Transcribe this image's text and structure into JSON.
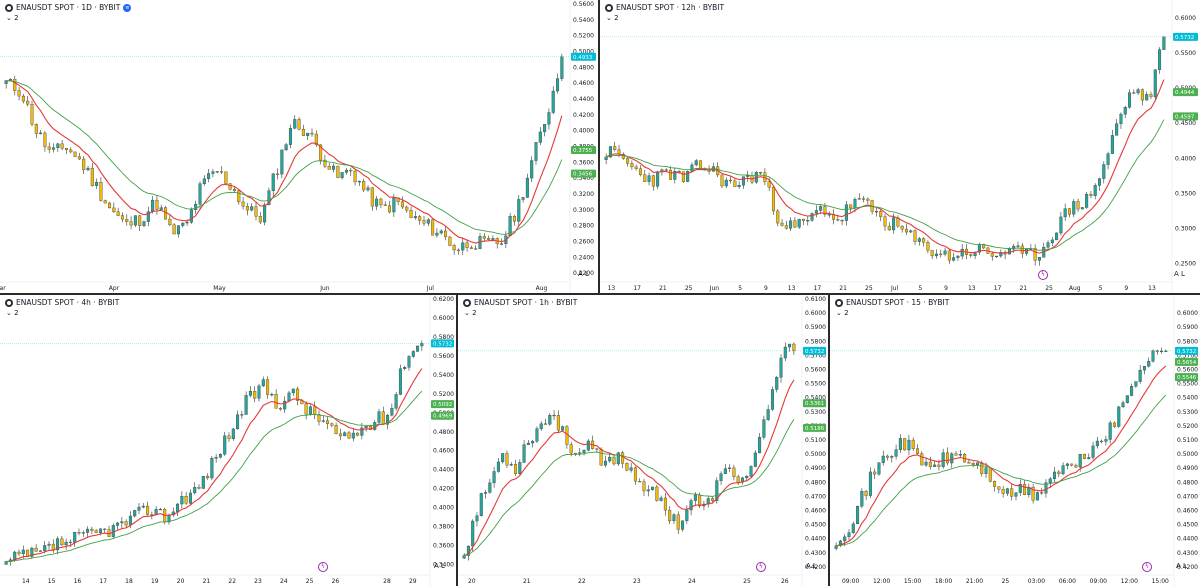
{
  "colors": {
    "up": "#26a69a",
    "down": "#f0b90b",
    "ema_fast": "#e53935",
    "ema_slow": "#43a047",
    "tag_price": "#00bcd4",
    "tag_green": "#4caf50"
  },
  "panels": [
    {
      "id": "1d",
      "title": "ENAUSDT SPOT · 1D · BYBIT",
      "indicator": "2",
      "show_badge": true,
      "show_flash": false,
      "watermark": "",
      "corner": "A  L"
    },
    {
      "id": "12h",
      "title": "ENAUSDT SPOT · 12h · BYBIT",
      "indicator": "2",
      "show_badge": false,
      "show_flash": true,
      "corner": "A  L"
    },
    {
      "id": "4h",
      "title": "ENAUSDT SPOT · 4h · BYBIT",
      "indicator": "2",
      "show_badge": false,
      "show_flash": true,
      "corner": "A  L"
    },
    {
      "id": "1h",
      "title": "ENAUSDT SPOT · 1h · BYBIT",
      "indicator": "2",
      "show_badge": false,
      "show_flash": true,
      "corner": "A  L"
    },
    {
      "id": "15",
      "title": "ENAUSDT SPOT · 15 · BYBIT",
      "indicator": "2",
      "show_badge": false,
      "show_flash": true,
      "corner": "A  L"
    }
  ],
  "chart_data": [
    {
      "type": "candlestick",
      "title": "ENAUSDT SPOT · 1D · BYBIT",
      "ylim": [
        0.21,
        0.56
      ],
      "yticks": [
        "0.5600",
        "0.5400",
        "0.5200",
        "0.5000",
        "0.4800",
        "0.4600",
        "0.4400",
        "0.4200",
        "0.4000",
        "0.3800",
        "0.3600",
        "0.3400",
        "0.3200",
        "0.3000",
        "0.2800",
        "0.2600",
        "0.2400",
        "0.2200"
      ],
      "xticks": [
        "Mar",
        "Apr",
        "May",
        "Jun",
        "Jul",
        "Aug"
      ],
      "xtick_pos": [
        0.0,
        0.2,
        0.385,
        0.57,
        0.755,
        0.95
      ],
      "tags": [
        {
          "text": "0.4933",
          "value": 0.4933,
          "color": "#00bcd4"
        },
        {
          "text": "0.3755",
          "value": 0.3755,
          "color": "#4caf50"
        },
        {
          "text": "0.3456",
          "value": 0.3456,
          "color": "#4caf50"
        }
      ],
      "current": 0.4933,
      "seed": 11,
      "path": [
        0.46,
        0.45,
        0.4,
        0.37,
        0.38,
        0.36,
        0.33,
        0.3,
        0.28,
        0.29,
        0.31,
        0.27,
        0.28,
        0.33,
        0.35,
        0.33,
        0.3,
        0.29,
        0.35,
        0.41,
        0.4,
        0.37,
        0.34,
        0.35,
        0.32,
        0.3,
        0.31,
        0.29,
        0.28,
        0.27,
        0.25,
        0.26,
        0.255,
        0.26,
        0.3,
        0.36,
        0.42,
        0.49
      ],
      "ema_start": [
        0.4,
        0.41
      ]
    },
    {
      "type": "candlestick",
      "title": "ENAUSDT SPOT · 12h · BYBIT",
      "ylim": [
        0.225,
        0.62
      ],
      "yticks": [
        "0.6000",
        "0.5500",
        "0.5000",
        "0.4500",
        "0.4000",
        "0.3500",
        "0.3000",
        "0.2500"
      ],
      "xticks": [
        "13",
        "17",
        "21",
        "25",
        "Jun",
        "5",
        "9",
        "13",
        "17",
        "21",
        "25",
        "Jul",
        "5",
        "9",
        "13",
        "17",
        "21",
        "25",
        "Aug",
        "5",
        "9",
        "13"
      ],
      "xtick_pos": [
        0.02,
        0.065,
        0.11,
        0.155,
        0.2,
        0.245,
        0.29,
        0.335,
        0.38,
        0.425,
        0.47,
        0.515,
        0.56,
        0.605,
        0.65,
        0.695,
        0.74,
        0.785,
        0.83,
        0.875,
        0.92,
        0.965
      ],
      "tags": [
        {
          "text": "0.5732",
          "value": 0.5732,
          "color": "#00bcd4"
        },
        {
          "text": "0.4944",
          "value": 0.4944,
          "color": "#4caf50"
        },
        {
          "text": "0.4597",
          "value": 0.4597,
          "color": "#4caf50"
        }
      ],
      "current": 0.5732,
      "seed": 23,
      "path": [
        0.41,
        0.4,
        0.38,
        0.37,
        0.38,
        0.37,
        0.39,
        0.38,
        0.36,
        0.37,
        0.38,
        0.32,
        0.3,
        0.31,
        0.33,
        0.31,
        0.34,
        0.33,
        0.31,
        0.3,
        0.28,
        0.27,
        0.26,
        0.265,
        0.27,
        0.262,
        0.27,
        0.26,
        0.265,
        0.3,
        0.33,
        0.34,
        0.38,
        0.45,
        0.5,
        0.48,
        0.57
      ],
      "ema_start": [
        0.39,
        0.4
      ]
    },
    {
      "type": "candlestick",
      "title": "ENAUSDT SPOT · 4h · BYBIT",
      "ylim": [
        0.33,
        0.62
      ],
      "yticks": [
        "0.6200",
        "0.6000",
        "0.5800",
        "0.5600",
        "0.5400",
        "0.5200",
        "0.5000",
        "0.4800",
        "0.4600",
        "0.4400",
        "0.4200",
        "0.4000",
        "0.3800",
        "0.3600",
        "0.3400"
      ],
      "xticks": [
        "14",
        "15",
        "16",
        "17",
        "18",
        "19",
        "20",
        "21",
        "22",
        "23",
        "24",
        "25",
        "26",
        "28",
        "29"
      ],
      "xtick_pos": [
        0.06,
        0.12,
        0.18,
        0.24,
        0.3,
        0.36,
        0.42,
        0.48,
        0.54,
        0.6,
        0.66,
        0.72,
        0.78,
        0.9,
        0.96
      ],
      "tags": [
        {
          "text": "0.5732",
          "value": 0.5732,
          "color": "#00bcd4"
        },
        {
          "text": "0.5092",
          "value": 0.5092,
          "color": "#4caf50"
        },
        {
          "text": "0.4969",
          "value": 0.4969,
          "color": "#4caf50"
        }
      ],
      "current": 0.5732,
      "seed": 37,
      "path": [
        0.34,
        0.35,
        0.35,
        0.36,
        0.365,
        0.37,
        0.375,
        0.38,
        0.39,
        0.4,
        0.39,
        0.41,
        0.42,
        0.45,
        0.48,
        0.51,
        0.53,
        0.51,
        0.52,
        0.5,
        0.49,
        0.47,
        0.48,
        0.49,
        0.5,
        0.56,
        0.575
      ],
      "ema_start": [
        0.34,
        0.335
      ]
    },
    {
      "type": "candlestick",
      "title": "ENAUSDT SPOT · 1h · BYBIT",
      "ylim": [
        0.415,
        0.61
      ],
      "yticks": [
        "0.6100",
        "0.6000",
        "0.5900",
        "0.5800",
        "0.5700",
        "0.5600",
        "0.5500",
        "0.5400",
        "0.5300",
        "0.5200",
        "0.5100",
        "0.5000",
        "0.4900",
        "0.4800",
        "0.4700",
        "0.4600",
        "0.4500",
        "0.4400",
        "0.4300",
        "0.4200"
      ],
      "xticks": [
        "20",
        "21",
        "22",
        "23",
        "24",
        "25",
        "26"
      ],
      "xtick_pos": [
        0.04,
        0.2,
        0.36,
        0.52,
        0.68,
        0.84,
        0.95
      ],
      "tags": [
        {
          "text": "0.5732",
          "value": 0.5732,
          "color": "#00bcd4"
        },
        {
          "text": "0.5361",
          "value": 0.5361,
          "color": "#4caf50"
        },
        {
          "text": "0.5186",
          "value": 0.5186,
          "color": "#4caf50"
        }
      ],
      "current": 0.5732,
      "seed": 53,
      "path": [
        0.43,
        0.46,
        0.48,
        0.5,
        0.49,
        0.51,
        0.52,
        0.53,
        0.51,
        0.5,
        0.505,
        0.49,
        0.5,
        0.49,
        0.48,
        0.47,
        0.46,
        0.45,
        0.47,
        0.46,
        0.48,
        0.49,
        0.48,
        0.5,
        0.53,
        0.57,
        0.575
      ],
      "ema_start": [
        0.44,
        0.42
      ]
    },
    {
      "type": "candlestick",
      "title": "ENAUSDT SPOT · 15 · BYBIT",
      "ylim": [
        0.415,
        0.61
      ],
      "yticks": [
        "0.6000",
        "0.5900",
        "0.5800",
        "0.5700",
        "0.5600",
        "0.5500",
        "0.5400",
        "0.5300",
        "0.5200",
        "0.5100",
        "0.5000",
        "0.4900",
        "0.4800",
        "0.4700",
        "0.4600",
        "0.4500",
        "0.4400",
        "0.4300",
        "0.4200"
      ],
      "xticks": [
        "09:00",
        "12:00",
        "15:00",
        "18:00",
        "21:00",
        "25",
        "03:00",
        "06:00",
        "09:00",
        "12:00",
        "15:00"
      ],
      "xtick_pos": [
        0.06,
        0.15,
        0.24,
        0.33,
        0.42,
        0.51,
        0.6,
        0.69,
        0.78,
        0.87,
        0.96
      ],
      "tags": [
        {
          "text": "0.5732",
          "value": 0.5732,
          "color": "#00bcd4"
        },
        {
          "text": "0.5654",
          "value": 0.5654,
          "color": "#4caf50"
        },
        {
          "text": "0.5546",
          "value": 0.5546,
          "color": "#4caf50"
        }
      ],
      "current": 0.5732,
      "seed": 71,
      "path": [
        0.44,
        0.45,
        0.47,
        0.49,
        0.5,
        0.51,
        0.5,
        0.49,
        0.495,
        0.5,
        0.495,
        0.49,
        0.48,
        0.47,
        0.475,
        0.47,
        0.48,
        0.49,
        0.49,
        0.5,
        0.51,
        0.52,
        0.54,
        0.56,
        0.575,
        0.57
      ],
      "ema_start": [
        0.45,
        0.44
      ]
    }
  ]
}
